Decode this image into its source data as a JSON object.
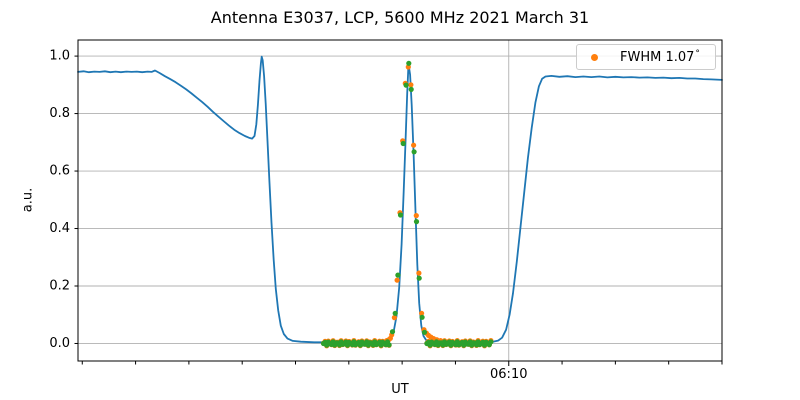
{
  "chart_data": {
    "type": "line",
    "title": "Antenna E3037, LCP, 5600 MHz 2021 March 31",
    "xlabel": "UT",
    "ylabel": "a.u.",
    "x_axis": {
      "unit": "minutes after 06:00 UT",
      "min": -6.16,
      "max": 18.0,
      "minor_ticks": [
        -6,
        -4,
        -2,
        0,
        2,
        4,
        6,
        8,
        12,
        14,
        16,
        18
      ],
      "major_ticks": [
        {
          "value": 10,
          "label": "06:10"
        }
      ]
    },
    "y_axis": {
      "min": -0.061,
      "max": 1.056,
      "ticks": [
        {
          "value": 0.0,
          "label": "0.0"
        },
        {
          "value": 0.2,
          "label": "0.2"
        },
        {
          "value": 0.4,
          "label": "0.4"
        },
        {
          "value": 0.6,
          "label": "0.6"
        },
        {
          "value": 0.8,
          "label": "0.8"
        },
        {
          "value": 1.0,
          "label": "1.0"
        }
      ]
    },
    "grid": {
      "color": "#b0b0b0",
      "horizontal": true,
      "vertical_major_only": true
    },
    "legend": {
      "label": "FWHM 1.07",
      "degree_symbol": "°",
      "marker_color": "#ff7f0e",
      "position": "upper-right"
    },
    "series": [
      {
        "name": "drift-scan-curve",
        "type": "line",
        "color": "#1f77b4",
        "width": 1.8,
        "points": [
          [
            -6.16,
            0.945
          ],
          [
            -5.95,
            0.947
          ],
          [
            -5.75,
            0.944
          ],
          [
            -5.55,
            0.946
          ],
          [
            -5.35,
            0.945
          ],
          [
            -5.15,
            0.947
          ],
          [
            -4.95,
            0.944
          ],
          [
            -4.75,
            0.946
          ],
          [
            -4.55,
            0.944
          ],
          [
            -4.35,
            0.946
          ],
          [
            -4.15,
            0.945
          ],
          [
            -3.95,
            0.946
          ],
          [
            -3.75,
            0.944
          ],
          [
            -3.55,
            0.946
          ],
          [
            -3.4,
            0.945
          ],
          [
            -3.27,
            0.95
          ],
          [
            -3.1,
            0.941
          ],
          [
            -2.9,
            0.93
          ],
          [
            -2.7,
            0.92
          ],
          [
            -2.5,
            0.909
          ],
          [
            -2.3,
            0.897
          ],
          [
            -2.1,
            0.884
          ],
          [
            -1.9,
            0.87
          ],
          [
            -1.7,
            0.855
          ],
          [
            -1.5,
            0.84
          ],
          [
            -1.3,
            0.824
          ],
          [
            -1.1,
            0.806
          ],
          [
            -0.9,
            0.79
          ],
          [
            -0.7,
            0.774
          ],
          [
            -0.5,
            0.758
          ],
          [
            -0.3,
            0.744
          ],
          [
            -0.1,
            0.732
          ],
          [
            0.1,
            0.722
          ],
          [
            0.25,
            0.716
          ],
          [
            0.37,
            0.713
          ],
          [
            0.46,
            0.722
          ],
          [
            0.53,
            0.762
          ],
          [
            0.59,
            0.83
          ],
          [
            0.65,
            0.915
          ],
          [
            0.7,
            0.975
          ],
          [
            0.73,
            0.998
          ],
          [
            0.77,
            0.985
          ],
          [
            0.82,
            0.93
          ],
          [
            0.88,
            0.835
          ],
          [
            0.95,
            0.705
          ],
          [
            1.02,
            0.565
          ],
          [
            1.1,
            0.42
          ],
          [
            1.18,
            0.29
          ],
          [
            1.26,
            0.19
          ],
          [
            1.35,
            0.115
          ],
          [
            1.45,
            0.062
          ],
          [
            1.56,
            0.033
          ],
          [
            1.7,
            0.017
          ],
          [
            1.9,
            0.009
          ],
          [
            2.2,
            0.006
          ],
          [
            2.7,
            0.004
          ],
          [
            3.3,
            0.004
          ],
          [
            3.9,
            0.004
          ],
          [
            4.5,
            0.004
          ],
          [
            5.0,
            0.005
          ],
          [
            5.35,
            0.007
          ],
          [
            5.55,
            0.015
          ],
          [
            5.68,
            0.04
          ],
          [
            5.79,
            0.095
          ],
          [
            5.89,
            0.195
          ],
          [
            5.98,
            0.345
          ],
          [
            6.06,
            0.53
          ],
          [
            6.13,
            0.71
          ],
          [
            6.19,
            0.87
          ],
          [
            6.24,
            0.973
          ],
          [
            6.3,
            0.935
          ],
          [
            6.36,
            0.83
          ],
          [
            6.43,
            0.66
          ],
          [
            6.5,
            0.46
          ],
          [
            6.57,
            0.275
          ],
          [
            6.64,
            0.14
          ],
          [
            6.72,
            0.062
          ],
          [
            6.8,
            0.026
          ],
          [
            6.9,
            0.012
          ],
          [
            7.05,
            0.007
          ],
          [
            7.3,
            0.005
          ],
          [
            7.8,
            0.004
          ],
          [
            8.4,
            0.004
          ],
          [
            9.0,
            0.004
          ],
          [
            9.4,
            0.006
          ],
          [
            9.6,
            0.01
          ],
          [
            9.75,
            0.02
          ],
          [
            9.9,
            0.048
          ],
          [
            10.03,
            0.1
          ],
          [
            10.16,
            0.175
          ],
          [
            10.3,
            0.285
          ],
          [
            10.44,
            0.405
          ],
          [
            10.58,
            0.525
          ],
          [
            10.72,
            0.645
          ],
          [
            10.86,
            0.75
          ],
          [
            11.0,
            0.838
          ],
          [
            11.13,
            0.895
          ],
          [
            11.25,
            0.921
          ],
          [
            11.38,
            0.929
          ],
          [
            11.6,
            0.931
          ],
          [
            11.9,
            0.928
          ],
          [
            12.2,
            0.93
          ],
          [
            12.5,
            0.927
          ],
          [
            12.8,
            0.929
          ],
          [
            13.1,
            0.927
          ],
          [
            13.4,
            0.929
          ],
          [
            13.7,
            0.926
          ],
          [
            14.0,
            0.928
          ],
          [
            14.3,
            0.926
          ],
          [
            14.6,
            0.927
          ],
          [
            14.9,
            0.925
          ],
          [
            15.2,
            0.926
          ],
          [
            15.5,
            0.924
          ],
          [
            15.8,
            0.925
          ],
          [
            16.1,
            0.923
          ],
          [
            16.4,
            0.924
          ],
          [
            16.7,
            0.922
          ],
          [
            17.0,
            0.922
          ],
          [
            17.3,
            0.92
          ],
          [
            17.6,
            0.919
          ],
          [
            18.0,
            0.917
          ]
        ]
      },
      {
        "name": "measured-points",
        "type": "scatter",
        "color": "#ff7f0e",
        "radius": 2.6,
        "points": [
          [
            5.42,
            0.01
          ],
          [
            5.5,
            0.013
          ],
          [
            5.56,
            0.018
          ],
          [
            5.61,
            0.03
          ],
          [
            5.71,
            0.09
          ],
          [
            5.81,
            0.22
          ],
          [
            5.92,
            0.455
          ],
          [
            6.02,
            0.705
          ],
          [
            6.12,
            0.905
          ],
          [
            6.23,
            0.962
          ],
          [
            6.33,
            0.9
          ],
          [
            6.43,
            0.69
          ],
          [
            6.53,
            0.445
          ],
          [
            6.63,
            0.245
          ],
          [
            6.73,
            0.105
          ],
          [
            6.82,
            0.048
          ],
          [
            6.91,
            0.036
          ],
          [
            6.99,
            0.028
          ],
          [
            7.08,
            0.022
          ],
          [
            7.18,
            0.017
          ],
          [
            7.3,
            0.013
          ],
          [
            7.44,
            0.01
          ],
          [
            7.6,
            0.008
          ]
        ],
        "baseline_bands": [
          {
            "t0": 3.05,
            "t1": 5.56,
            "step": 0.06,
            "y": 0.001,
            "jitter": 0.009
          },
          {
            "t0": 6.93,
            "t1": 9.36,
            "step": 0.06,
            "y": 0.001,
            "jitter": 0.009
          }
        ]
      },
      {
        "name": "gaussian-fit-points",
        "type": "scatter",
        "color": "#2ca02c",
        "radius": 2.6,
        "points": [
          [
            5.64,
            0.041
          ],
          [
            5.74,
            0.105
          ],
          [
            5.84,
            0.238
          ],
          [
            5.94,
            0.447
          ],
          [
            6.04,
            0.696
          ],
          [
            6.15,
            0.899
          ],
          [
            6.25,
            0.975
          ],
          [
            6.34,
            0.884
          ],
          [
            6.45,
            0.667
          ],
          [
            6.54,
            0.424
          ],
          [
            6.64,
            0.227
          ],
          [
            6.75,
            0.091
          ],
          [
            6.84,
            0.039
          ]
        ],
        "baseline_bands": [
          {
            "t0": 3.05,
            "t1": 5.56,
            "step": 0.06,
            "y": 0.0,
            "jitter": 0.006
          },
          {
            "t0": 6.93,
            "t1": 9.36,
            "step": 0.06,
            "y": 0.0,
            "jitter": 0.006
          }
        ]
      }
    ]
  }
}
